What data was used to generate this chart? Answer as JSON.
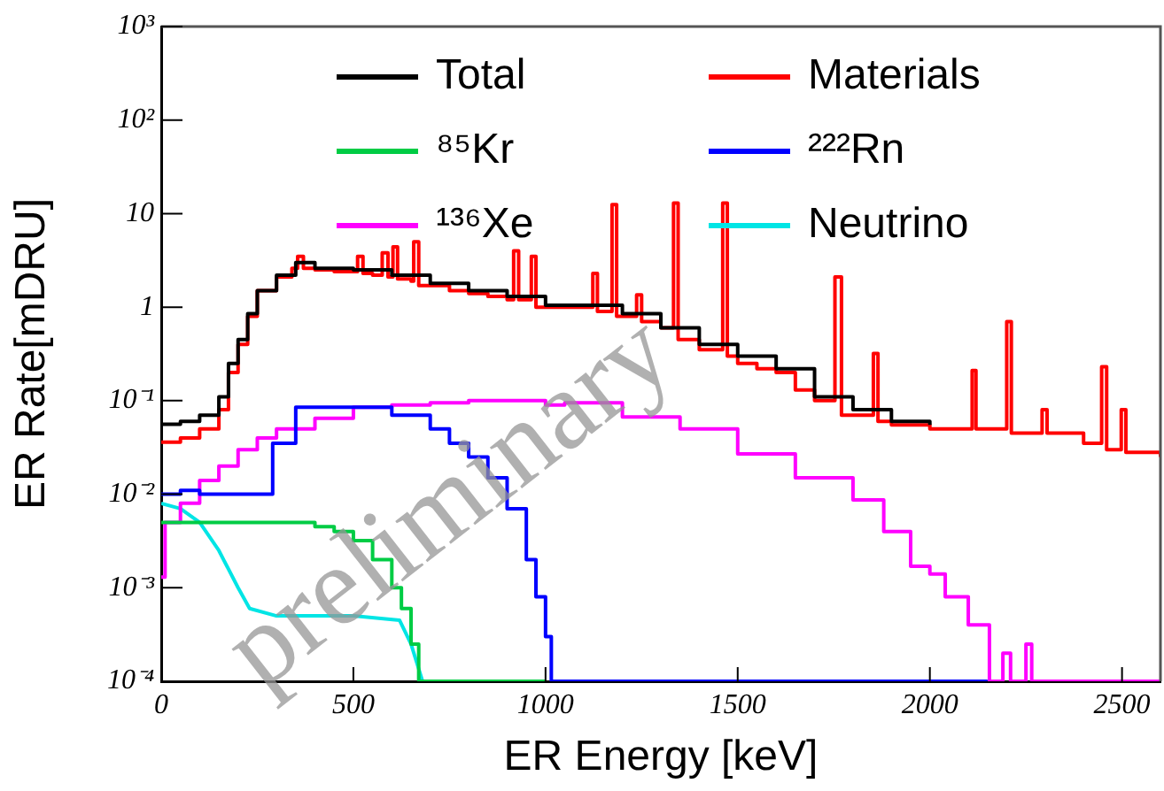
{
  "chart_data": {
    "type": "step",
    "xlabel": "ER Energy [keV]",
    "ylabel": "ER Rate[mDRU]",
    "log": "y",
    "xlim": [
      0,
      2600
    ],
    "xticks": [
      0,
      500,
      1000,
      1500,
      2000,
      2500
    ],
    "ylim": [
      0.0001,
      1000
    ],
    "yticks": [
      {
        "value": 0.0001,
        "label": "10⁻⁴"
      },
      {
        "value": 0.001,
        "label": "10⁻³"
      },
      {
        "value": 0.01,
        "label": "10⁻²"
      },
      {
        "value": 0.1,
        "label": "10⁻¹"
      },
      {
        "value": 1,
        "label": "1"
      },
      {
        "value": 10,
        "label": "10"
      },
      {
        "value": 100,
        "label": "10²"
      },
      {
        "value": 1000,
        "label": "10³"
      }
    ],
    "grid": false,
    "legend": "top",
    "marker": "none",
    "line_style": "solid",
    "annotations": [
      "preliminary"
    ],
    "series": [
      {
        "name": "Total",
        "color": "#000000",
        "x": [
          0,
          50,
          100,
          150,
          175,
          200,
          225,
          250,
          300,
          350,
          400,
          500,
          600,
          700,
          800,
          900,
          1000,
          1100,
          1200,
          1300,
          1400,
          1500,
          1600,
          1700,
          1800,
          1900,
          2000
        ],
        "values": [
          0.056,
          0.06,
          0.07,
          0.11,
          0.25,
          0.45,
          0.85,
          1.5,
          2.2,
          3.0,
          2.6,
          2.5,
          2.2,
          1.8,
          1.5,
          1.3,
          1.05,
          1.05,
          0.85,
          0.6,
          0.4,
          0.3,
          0.22,
          0.11,
          0.08,
          0.06,
          0.055
        ]
      },
      {
        "name": "Materials",
        "color": "#ff0000",
        "x": [
          0,
          50,
          100,
          150,
          175,
          200,
          225,
          250,
          300,
          340,
          355,
          370,
          400,
          450,
          500,
          511,
          525,
          550,
          575,
          590,
          603,
          615,
          650,
          657,
          670,
          700,
          750,
          800,
          850,
          900,
          917,
          930,
          963,
          975,
          1000,
          1050,
          1100,
          1123,
          1135,
          1173,
          1185,
          1200,
          1237,
          1250,
          1300,
          1333,
          1345,
          1400,
          1461,
          1473,
          1500,
          1550,
          1600,
          1650,
          1700,
          1753,
          1770,
          1800,
          1853,
          1865,
          1900,
          2000,
          2110,
          2120,
          2200,
          2212,
          2292,
          2305,
          2400,
          2447,
          2460,
          2498,
          2510,
          2600
        ],
        "values": [
          0.036,
          0.04,
          0.05,
          0.08,
          0.2,
          0.4,
          0.8,
          1.5,
          2.1,
          2.6,
          3.5,
          2.6,
          2.5,
          2.4,
          2.4,
          3.5,
          2.3,
          2.2,
          3.8,
          2.1,
          4.4,
          2.0,
          1.9,
          5,
          1.7,
          1.7,
          1.5,
          1.4,
          1.3,
          1.2,
          4,
          1.2,
          3.5,
          1.0,
          1.0,
          1.0,
          1.0,
          2.3,
          0.9,
          12.5,
          0.8,
          0.8,
          1.35,
          0.7,
          0.6,
          13,
          0.45,
          0.35,
          13,
          0.3,
          0.25,
          0.22,
          0.2,
          0.13,
          0.1,
          2.1,
          0.07,
          0.07,
          0.32,
          0.06,
          0.055,
          0.05,
          0.21,
          0.05,
          0.7,
          0.045,
          0.08,
          0.045,
          0.035,
          0.23,
          0.03,
          0.08,
          0.028,
          0.025
        ]
      },
      {
        "name": "⁸⁵Kr",
        "color": "#00cc44",
        "x": [
          0,
          300,
          400,
          450,
          500,
          550,
          600,
          625,
          650,
          670,
          1000
        ],
        "values": [
          0.005,
          0.005,
          0.0045,
          0.004,
          0.0032,
          0.002,
          0.001,
          0.0006,
          0.00025,
          0.0001,
          0.0001
        ]
      },
      {
        "name": "²²²Rn",
        "color": "#0000ff",
        "x": [
          0,
          50,
          100,
          200,
          290,
          350,
          500,
          600,
          700,
          750,
          800,
          850,
          900,
          950,
          975,
          1000,
          1015,
          2150
        ],
        "values": [
          0.01,
          0.011,
          0.01,
          0.01,
          0.035,
          0.085,
          0.085,
          0.07,
          0.05,
          0.035,
          0.025,
          0.015,
          0.007,
          0.002,
          0.0008,
          0.0003,
          0.0001,
          0.0001
        ]
      },
      {
        "name": "¹³⁶Xe",
        "color": "#ff00ff",
        "x": [
          0,
          10,
          50,
          100,
          150,
          200,
          250,
          300,
          400,
          500,
          600,
          700,
          800,
          900,
          1000,
          1050,
          1200,
          1350,
          1500,
          1650,
          1800,
          1880,
          1950,
          2000,
          2040,
          2100,
          2155,
          2190,
          2210,
          2250,
          2265,
          2600
        ],
        "values": [
          0.0013,
          0.005,
          0.008,
          0.014,
          0.02,
          0.03,
          0.04,
          0.05,
          0.065,
          0.085,
          0.09,
          0.095,
          0.1,
          0.1,
          0.09,
          0.095,
          0.067,
          0.05,
          0.027,
          0.015,
          0.0087,
          0.004,
          0.0017,
          0.0014,
          0.0008,
          0.0004,
          0.0001,
          0.0002,
          0.0001,
          0.00025,
          0.0001,
          0.0001
        ]
      },
      {
        "name": "Neutrino",
        "type": "line",
        "color": "#00e5e5",
        "x": [
          0,
          50,
          100,
          150,
          200,
          230,
          300,
          500,
          620,
          650,
          680
        ],
        "values": [
          0.008,
          0.007,
          0.005,
          0.0025,
          0.001,
          0.0006,
          0.0005,
          0.0005,
          0.00045,
          0.00025,
          0.0001
        ]
      }
    ]
  }
}
